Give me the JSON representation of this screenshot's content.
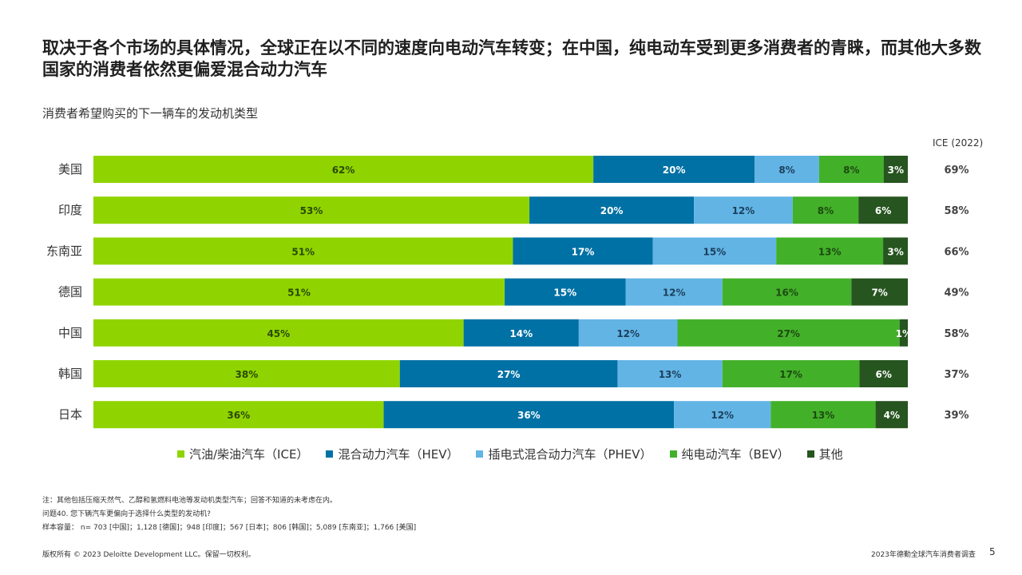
{
  "title": "取决于各个市场的具体情况，全球正在以不同的速度向电动汽车转变；在中国，纯电动车受到更多消费者的青睐，而其他大多数国家的消费者依然更偏爱混合动力汽车",
  "subtitle": "消费者希望购买的下一辆车的发动机类型",
  "ice_header": "ICE (2022)",
  "legend": [
    {
      "label": "汽油/柴油汽车（ICE）",
      "color": "#8fd400"
    },
    {
      "label": "混合动力汽车（HEV）",
      "color": "#0071a5"
    },
    {
      "label": "插电式混合动力汽车（PHEV）",
      "color": "#62b4e4"
    },
    {
      "label": "纯电动汽车（BEV）",
      "color": "#43b02a"
    },
    {
      "label": "其他",
      "color": "#26551f"
    }
  ],
  "colors": {
    "ice": "#8fd400",
    "hev": "#0071a5",
    "phev": "#62b4e4",
    "bev": "#43b02a",
    "other": "#26551f"
  },
  "chart_data": {
    "type": "bar",
    "orientation": "horizontal-stacked",
    "categories": [
      "美国",
      "印度",
      "东南亚",
      "德国",
      "中国",
      "韩国",
      "日本"
    ],
    "series": [
      {
        "name": "汽油/柴油汽车（ICE）",
        "values": [
          62,
          53,
          51,
          51,
          45,
          38,
          36
        ]
      },
      {
        "name": "混合动力汽车（HEV）",
        "values": [
          20,
          20,
          17,
          15,
          14,
          27,
          36
        ]
      },
      {
        "name": "插电式混合动力汽车（PHEV）",
        "values": [
          8,
          12,
          15,
          12,
          12,
          13,
          12
        ]
      },
      {
        "name": "纯电动汽车（BEV）",
        "values": [
          8,
          8,
          13,
          16,
          27,
          17,
          13
        ]
      },
      {
        "name": "其他",
        "values": [
          3,
          6,
          3,
          7,
          1,
          6,
          4
        ]
      }
    ],
    "ice_2022": [
      69,
      58,
      66,
      49,
      58,
      37,
      39
    ],
    "ice_2022_labels": [
      "69%",
      "58%",
      "66%",
      "49%",
      "58%",
      "37%",
      "39%"
    ],
    "legend_position": "bottom",
    "grid": false
  },
  "notes": [
    "注：其他包括压缩天然气、乙醇和氢燃料电池等发动机类型汽车；回答不知道的未考虑在内。",
    "问题40. 您下辆汽车更偏向于选择什么类型的发动机?",
    "样本容量： n= 703 [中国]；1,128 [德国]；948 [印度]；567 [日本]；806 [韩国]；5,089 [东南亚]；1,766 [美国]"
  ],
  "footer": {
    "copyright": "版权所有 © 2023 Deloitte Development LLC。保留一切权利。",
    "report": "2023年德勤全球汽车消费者调查",
    "page": "5"
  }
}
